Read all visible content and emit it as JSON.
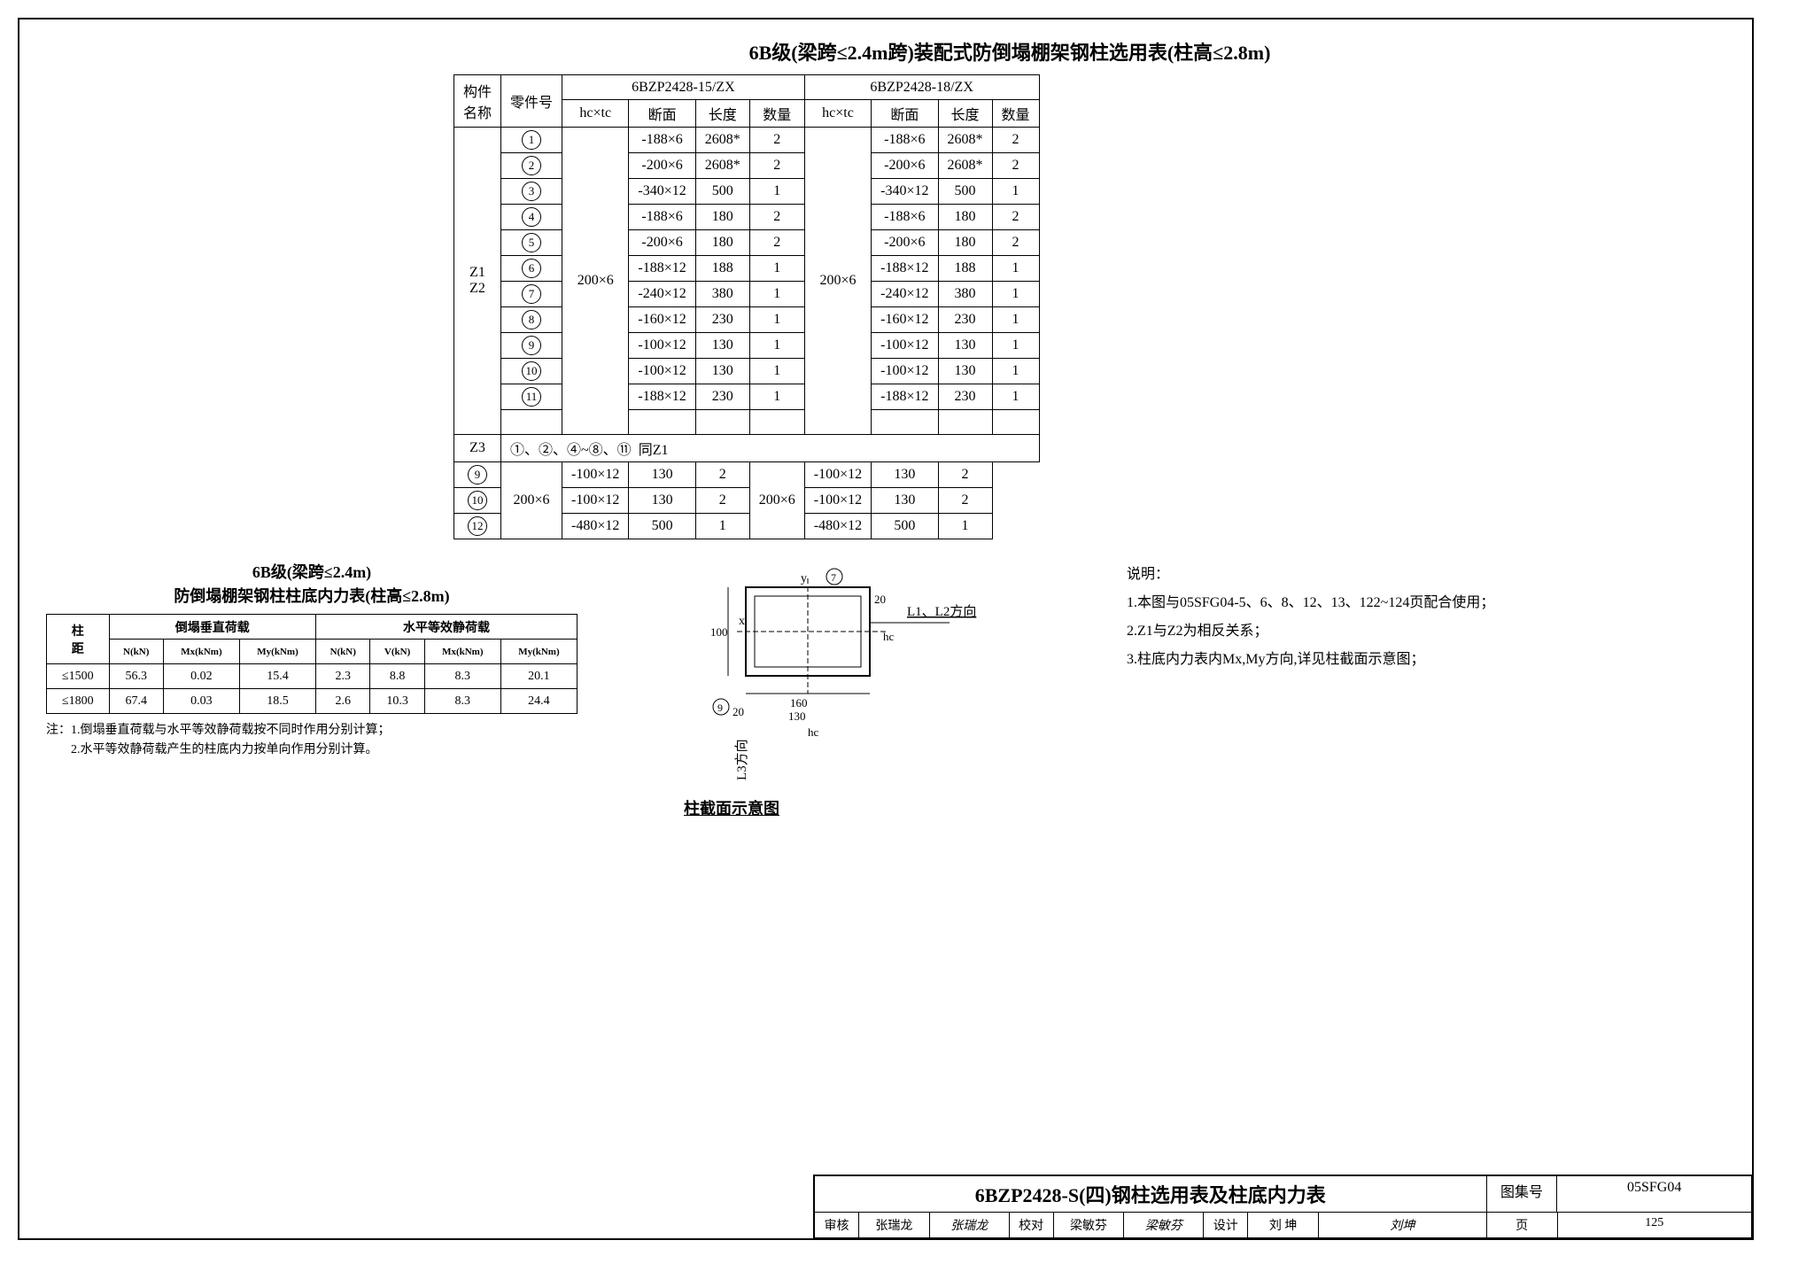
{
  "main_title": "6B级(梁跨≤2.4m跨)装配式防倒塌棚架钢柱选用表(柱高≤2.8m)",
  "headers": {
    "component": "构件\n名称",
    "part_no": "零件号",
    "group_a": "6BZP2428-15/ZX",
    "group_b": "6BZP2428-18/ZX",
    "hctc": "hc×tc",
    "section": "断面",
    "length": "长度",
    "qty": "数量"
  },
  "z1z2_label": "Z1\nZ2",
  "z3_label": "Z3",
  "hctc_val": "200×6",
  "z1z2_rows": [
    {
      "no": "1",
      "secA": "-188×6",
      "lenA": "2608*",
      "qtyA": "2",
      "secB": "-188×6",
      "lenB": "2608*",
      "qtyB": "2"
    },
    {
      "no": "2",
      "secA": "-200×6",
      "lenA": "2608*",
      "qtyA": "2",
      "secB": "-200×6",
      "lenB": "2608*",
      "qtyB": "2"
    },
    {
      "no": "3",
      "secA": "-340×12",
      "lenA": "500",
      "qtyA": "1",
      "secB": "-340×12",
      "lenB": "500",
      "qtyB": "1"
    },
    {
      "no": "4",
      "secA": "-188×6",
      "lenA": "180",
      "qtyA": "2",
      "secB": "-188×6",
      "lenB": "180",
      "qtyB": "2"
    },
    {
      "no": "5",
      "secA": "-200×6",
      "lenA": "180",
      "qtyA": "2",
      "secB": "-200×6",
      "lenB": "180",
      "qtyB": "2"
    },
    {
      "no": "6",
      "secA": "-188×12",
      "lenA": "188",
      "qtyA": "1",
      "secB": "-188×12",
      "lenB": "188",
      "qtyB": "1"
    },
    {
      "no": "7",
      "secA": "-240×12",
      "lenA": "380",
      "qtyA": "1",
      "secB": "-240×12",
      "lenB": "380",
      "qtyB": "1"
    },
    {
      "no": "8",
      "secA": "-160×12",
      "lenA": "230",
      "qtyA": "1",
      "secB": "-160×12",
      "lenB": "230",
      "qtyB": "1"
    },
    {
      "no": "9",
      "secA": "-100×12",
      "lenA": "130",
      "qtyA": "1",
      "secB": "-100×12",
      "lenB": "130",
      "qtyB": "1"
    },
    {
      "no": "10",
      "secA": "-100×12",
      "lenA": "130",
      "qtyA": "1",
      "secB": "-100×12",
      "lenB": "130",
      "qtyB": "1"
    },
    {
      "no": "11",
      "secA": "-188×12",
      "lenA": "230",
      "qtyA": "1",
      "secB": "-188×12",
      "lenB": "230",
      "qtyB": "1"
    }
  ],
  "z3_note_parts": [
    "①、②、④~⑧、⑪",
    "同Z1"
  ],
  "z3_rows": [
    {
      "no": "9",
      "secA": "-100×12",
      "lenA": "130",
      "qtyA": "2",
      "secB": "-100×12",
      "lenB": "130",
      "qtyB": "2"
    },
    {
      "no": "10",
      "secA": "-100×12",
      "lenA": "130",
      "qtyA": "2",
      "secB": "-100×12",
      "lenB": "130",
      "qtyB": "2"
    },
    {
      "no": "12",
      "secA": "-480×12",
      "lenA": "500",
      "qtyA": "1",
      "secB": "-480×12",
      "lenB": "500",
      "qtyB": "1"
    }
  ],
  "force": {
    "title1": "6B级(梁跨≤2.4m)",
    "title2": "防倒塌棚架钢柱柱底内力表(柱高≤2.8m)",
    "col_dist": "柱\n距",
    "collapse_load": "倒塌垂直荷载",
    "horiz_load": "水平等效静荷载",
    "sub_headers": [
      "N(kN)",
      "Mx(kNm)",
      "My(kNm)",
      "N(kN)",
      "V(kN)",
      "Mx(kNm)",
      "My(kNm)"
    ],
    "rows": [
      {
        "d": "≤1500",
        "v": [
          "56.3",
          "0.02",
          "15.4",
          "2.3",
          "8.8",
          "8.3",
          "20.1"
        ]
      },
      {
        "d": "≤1800",
        "v": [
          "67.4",
          "0.03",
          "18.5",
          "2.6",
          "10.3",
          "8.3",
          "24.4"
        ]
      }
    ],
    "notes": [
      "注：1.倒塌垂直荷载与水平等效静荷载按不同时作用分别计算；",
      "　　2.水平等效静荷载产生的柱底内力按单向作用分别计算。"
    ]
  },
  "diagram": {
    "caption": "柱截面示意图",
    "y_label": "y",
    "x_label": "x",
    "dim_160": "160",
    "dim_130": "130",
    "dim_100": "100",
    "dim_20": "20",
    "dim_hc": "hc",
    "L12": "L1、L2方向",
    "L3": "L3方向",
    "circ7": "7",
    "circ9": "9"
  },
  "notes": {
    "title": "说明：",
    "items": [
      "1.本图与05SFG04-5、6、8、12、13、122~124页配合使用；",
      "2.Z1与Z2为相反关系；",
      "3.柱底内力表内Mx,My方向,详见柱截面示意图；"
    ]
  },
  "titleblock": {
    "drawing_title": "6BZP2428-S(四)钢柱选用表及柱底内力表",
    "album_label": "图集号",
    "album_no": "05SFG04",
    "page_label": "页",
    "page_no": "125",
    "review_label": "审核",
    "review_name": "张瑞龙",
    "check_label": "校对",
    "check_name": "梁敏芬",
    "design_label": "设计",
    "design_name": "刘 坤"
  }
}
